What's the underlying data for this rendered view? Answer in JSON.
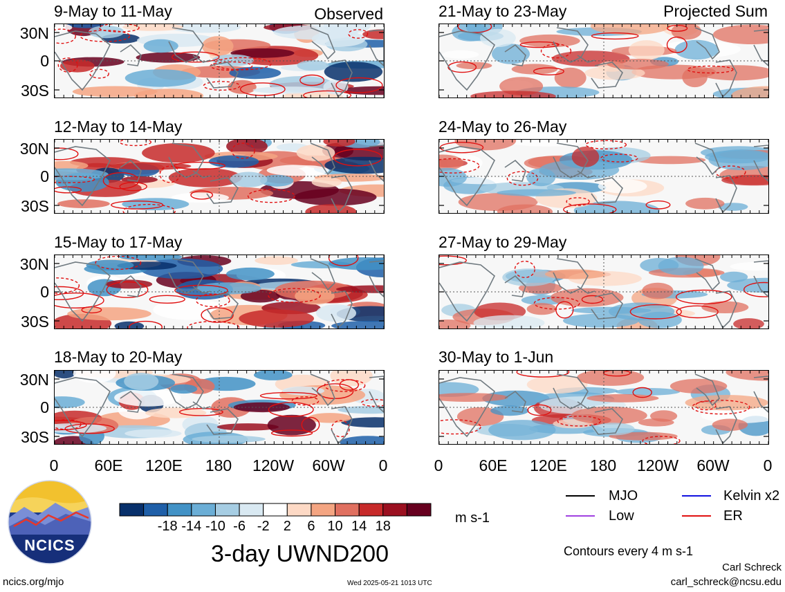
{
  "observed_label": "Observed",
  "projected_label": "Projected Sum",
  "panels": [
    {
      "title": "9-May to 11-May"
    },
    {
      "title": "12-May to 14-May"
    },
    {
      "title": "15-May to 17-May"
    },
    {
      "title": "18-May to 20-May"
    },
    {
      "title": "21-May to 23-May"
    },
    {
      "title": "24-May to 26-May"
    },
    {
      "title": "27-May to 29-May"
    },
    {
      "title": "30-May to 1-Jun"
    }
  ],
  "lat_labels": [
    "30N",
    "0",
    "30S"
  ],
  "lon_labels": [
    "0",
    "60E",
    "120E",
    "180",
    "120W",
    "60W",
    "0"
  ],
  "colorbar": {
    "labels": [
      "-18",
      "-14",
      "-10",
      "-6",
      "-2",
      "2",
      "6",
      "10",
      "14",
      "18"
    ],
    "colors": [
      "#08306b",
      "#1f5fa8",
      "#4292c6",
      "#6baed6",
      "#a6cde3",
      "#d9e9f2",
      "#ffffff",
      "#fdd9c5",
      "#f4a582",
      "#e07060",
      "#c72a2a",
      "#9b1020",
      "#67001f"
    ],
    "units": "m s-1"
  },
  "legend": [
    {
      "label": "MJO",
      "color": "#000000"
    },
    {
      "label": "Kelvin x2",
      "color": "#1010e0"
    },
    {
      "label": "Low",
      "color": "#a040e0"
    },
    {
      "label": "ER",
      "color": "#e01010"
    }
  ],
  "main_title": "3-day UWND200",
  "contours_note": "Contours every 4 m s-1",
  "credit_name": "Carl Schreck",
  "credit_email": "carl_schreck@ncsu.edu",
  "site": "ncics.org/mjo",
  "timestamp": "Wed 2025-05-21 1013 UTC",
  "logo_text": "NCICS"
}
